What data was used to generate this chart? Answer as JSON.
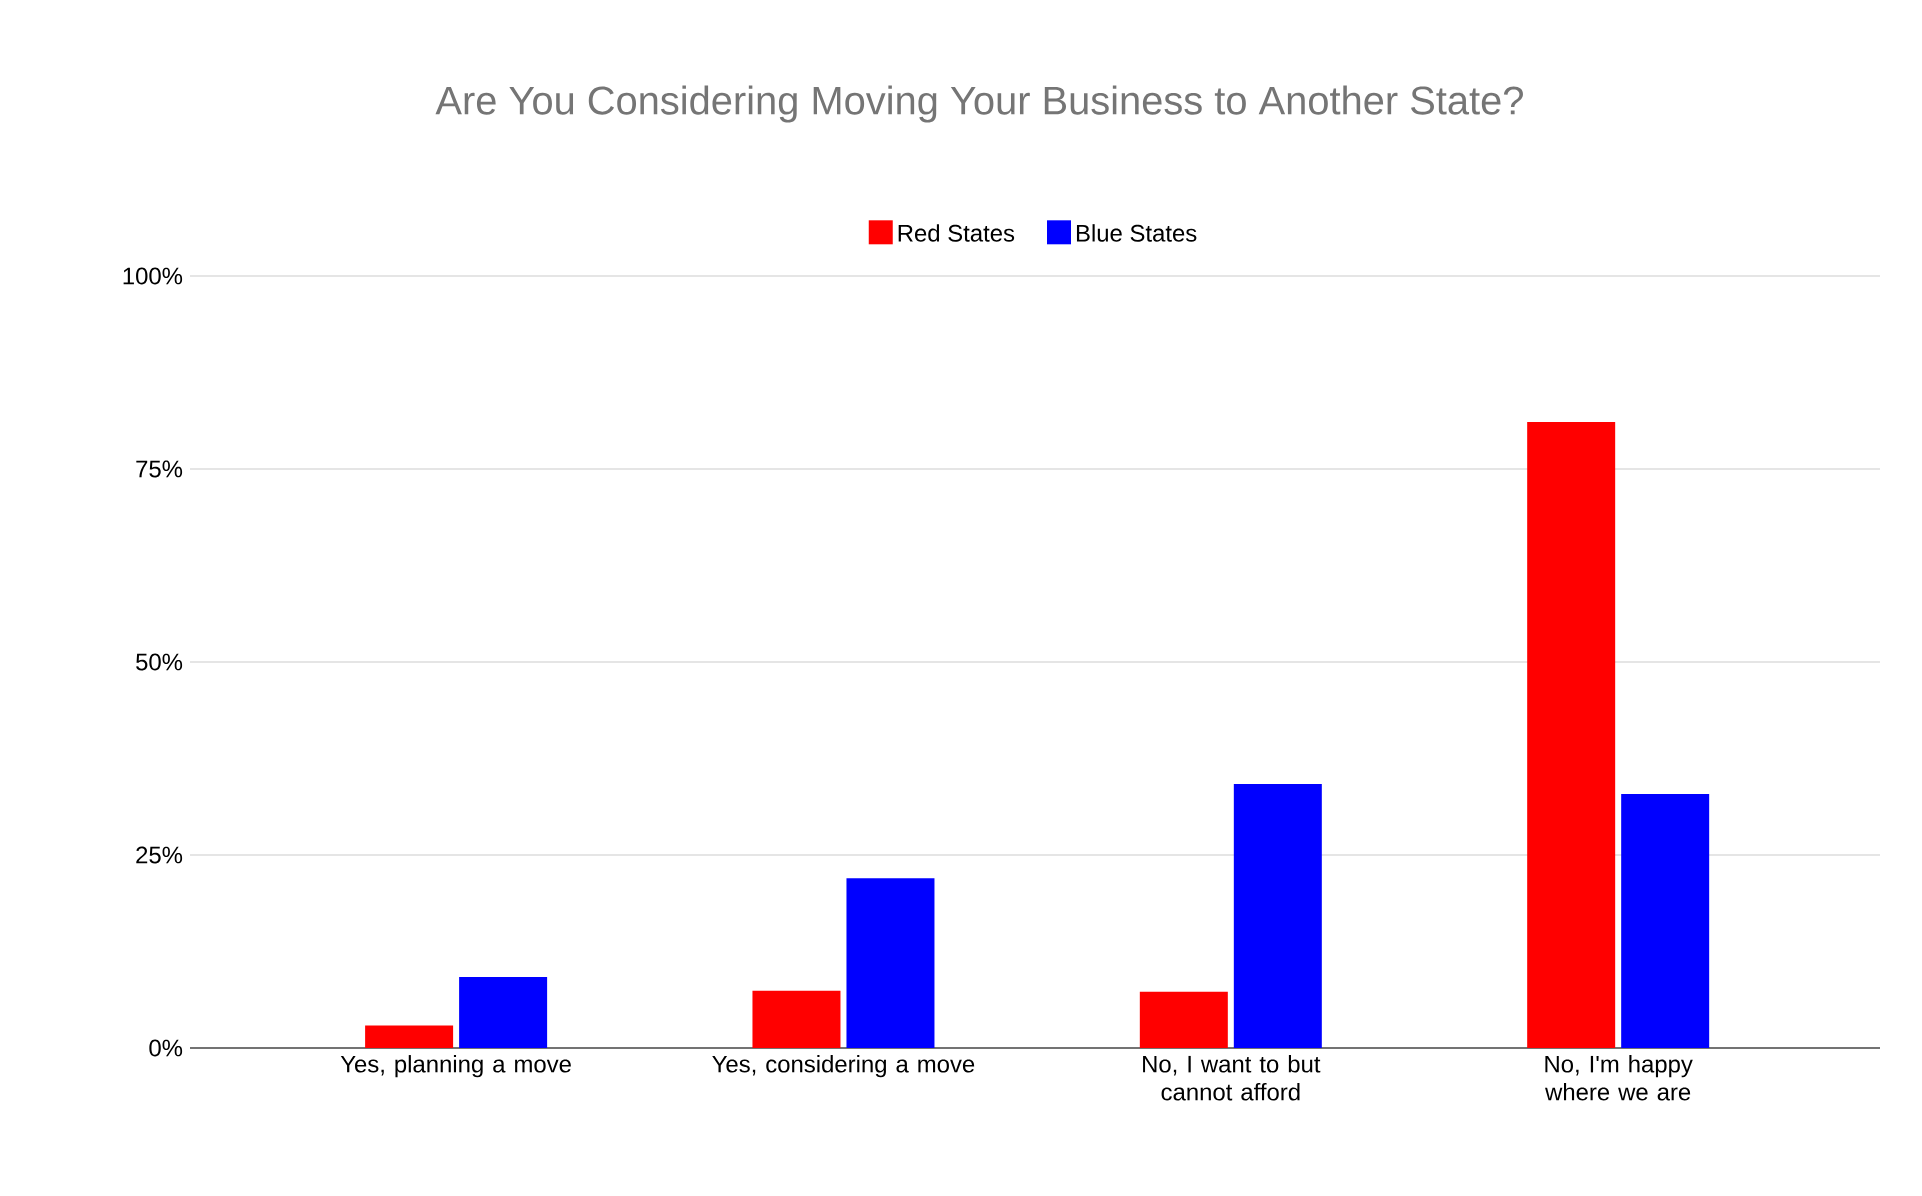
{
  "chart_data": {
    "type": "bar",
    "title": "Are You Considering Moving Your Business to Another State?",
    "categories": [
      "Yes, planning a move",
      "Yes, considering a move",
      "No, I want to but cannot afford",
      "No, I'm happy where we are"
    ],
    "series": [
      {
        "name": "Red States",
        "color": "#ff0000",
        "values": [
          2.9,
          7.4,
          7.3,
          81.1
        ]
      },
      {
        "name": "Blue States",
        "color": "#0000ff",
        "values": [
          9.2,
          22.0,
          34.2,
          32.9
        ]
      }
    ],
    "ylim": [
      0,
      100
    ],
    "yticks": [
      {
        "value": 0,
        "label": "0%"
      },
      {
        "value": 25,
        "label": "25%"
      },
      {
        "value": 50,
        "label": "50%"
      },
      {
        "value": 75,
        "label": "75%"
      },
      {
        "value": 100,
        "label": "100%"
      }
    ],
    "grid": "y",
    "legend": "top"
  }
}
